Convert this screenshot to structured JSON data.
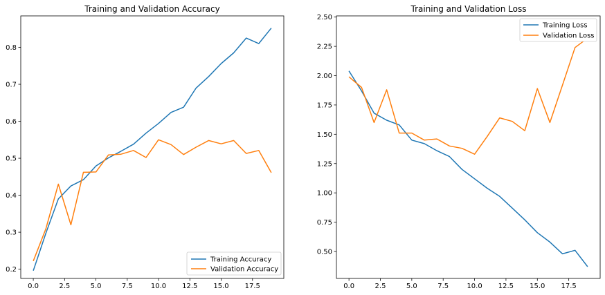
{
  "chart_data": [
    {
      "type": "line",
      "title": "Training and Validation Accuracy",
      "xlabel": "",
      "ylabel": "",
      "xlim": [
        -1,
        20
      ],
      "ylim": [
        0.175,
        0.885
      ],
      "x_ticks": [
        0,
        2.5,
        5,
        7.5,
        10,
        12.5,
        15,
        17.5
      ],
      "x_tick_labels": [
        "0.0",
        "2.5",
        "5.0",
        "7.5",
        "10.0",
        "12.5",
        "15.0",
        "17.5"
      ],
      "y_ticks": [
        0.2,
        0.3,
        0.4,
        0.5,
        0.6,
        0.7,
        0.8
      ],
      "y_tick_labels": [
        "0.2",
        "0.3",
        "0.4",
        "0.5",
        "0.6",
        "0.7",
        "0.8"
      ],
      "grid": false,
      "legend_position": "lower-right",
      "x": [
        0,
        1,
        2,
        3,
        4,
        5,
        6,
        7,
        8,
        9,
        10,
        11,
        12,
        13,
        14,
        15,
        16,
        17,
        18,
        19
      ],
      "series": [
        {
          "name": "Training Accuracy",
          "color": "#1f77b4",
          "values": [
            0.196,
            0.297,
            0.39,
            0.425,
            0.442,
            0.479,
            0.501,
            0.519,
            0.538,
            0.568,
            0.594,
            0.624,
            0.638,
            0.69,
            0.721,
            0.756,
            0.785,
            0.825,
            0.81,
            0.852
          ]
        },
        {
          "name": "Validation Accuracy",
          "color": "#ff7f0e",
          "values": [
            0.222,
            0.309,
            0.43,
            0.32,
            0.462,
            0.463,
            0.509,
            0.511,
            0.521,
            0.502,
            0.55,
            0.537,
            0.51,
            0.53,
            0.548,
            0.539,
            0.548,
            0.513,
            0.521,
            0.461
          ]
        }
      ]
    },
    {
      "type": "line",
      "title": "Training and Validation Loss",
      "xlabel": "",
      "ylabel": "",
      "xlim": [
        -1,
        20
      ],
      "ylim": [
        0.27,
        2.51
      ],
      "x_ticks": [
        0,
        2.5,
        5,
        7.5,
        10,
        12.5,
        15,
        17.5
      ],
      "x_tick_labels": [
        "0.0",
        "2.5",
        "5.0",
        "7.5",
        "10.0",
        "12.5",
        "15.0",
        "17.5"
      ],
      "y_ticks": [
        0.5,
        0.75,
        1.0,
        1.25,
        1.5,
        1.75,
        2.0,
        2.25,
        2.5
      ],
      "y_tick_labels": [
        "0.50",
        "0.75",
        "1.00",
        "1.25",
        "1.50",
        "1.75",
        "2.00",
        "2.25",
        "2.50"
      ],
      "grid": false,
      "legend_position": "upper-right",
      "x": [
        0,
        1,
        2,
        3,
        4,
        5,
        6,
        7,
        8,
        9,
        10,
        11,
        12,
        13,
        14,
        15,
        16,
        17,
        18,
        19
      ],
      "series": [
        {
          "name": "Training Loss",
          "color": "#1f77b4",
          "values": [
            2.04,
            1.87,
            1.68,
            1.62,
            1.58,
            1.45,
            1.42,
            1.36,
            1.31,
            1.2,
            1.12,
            1.04,
            0.97,
            0.87,
            0.77,
            0.66,
            0.58,
            0.48,
            0.51,
            0.37
          ]
        },
        {
          "name": "Validation Loss",
          "color": "#ff7f0e",
          "values": [
            1.99,
            1.9,
            1.6,
            1.88,
            1.51,
            1.51,
            1.45,
            1.46,
            1.4,
            1.38,
            1.33,
            1.48,
            1.64,
            1.61,
            1.53,
            1.89,
            1.6,
            1.92,
            2.24,
            2.32
          ]
        }
      ]
    }
  ]
}
